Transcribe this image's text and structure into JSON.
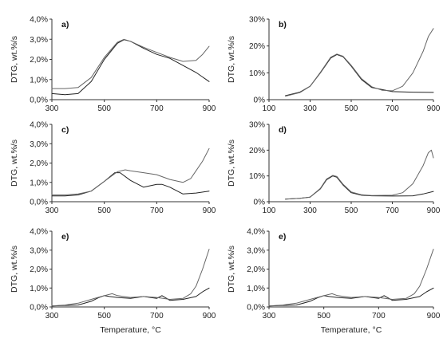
{
  "chart_data": [
    {
      "type": "line",
      "panel_label": "a)",
      "ylabel": "DTG, wt.%/s",
      "xlabel": "",
      "xlim": [
        300,
        900
      ],
      "ylim": [
        0,
        4
      ],
      "x_ticks": [
        "300",
        "500",
        "700",
        "900"
      ],
      "y_ticks": [
        "0,0%",
        "1,0%",
        "2,0%",
        "3,0%",
        "4,0%"
      ],
      "series": [
        {
          "color": "#222222",
          "x": [
            300,
            350,
            400,
            450,
            500,
            550,
            575,
            600,
            650,
            700,
            750,
            800,
            850,
            900
          ],
          "y": [
            0.3,
            0.25,
            0.3,
            0.9,
            2.0,
            2.8,
            2.98,
            2.9,
            2.55,
            2.25,
            2.05,
            1.7,
            1.35,
            0.9
          ]
        },
        {
          "color": "#666666",
          "x": [
            300,
            350,
            400,
            450,
            500,
            550,
            575,
            600,
            650,
            700,
            750,
            800,
            850,
            875,
            900
          ],
          "y": [
            0.55,
            0.55,
            0.6,
            1.1,
            2.1,
            2.85,
            3.0,
            2.9,
            2.6,
            2.35,
            2.1,
            1.9,
            1.95,
            2.25,
            2.65
          ]
        }
      ]
    },
    {
      "type": "line",
      "panel_label": "b)",
      "ylabel": "DTG, wt.%/s",
      "xlabel": "",
      "xlim": [
        100,
        900
      ],
      "ylim": [
        0,
        30
      ],
      "x_ticks": [
        "100",
        "300",
        "500",
        "700",
        "900"
      ],
      "y_ticks": [
        "0%",
        "10%",
        "20%",
        "30%"
      ],
      "series": [
        {
          "color": "#222222",
          "x": [
            180,
            250,
            300,
            350,
            400,
            430,
            460,
            500,
            550,
            600,
            700,
            800,
            900
          ],
          "y": [
            1.5,
            2.8,
            5.0,
            10.0,
            15.5,
            16.8,
            16.0,
            12.5,
            7.5,
            4.5,
            3.0,
            2.8,
            2.7
          ]
        },
        {
          "color": "#666666",
          "x": [
            180,
            250,
            300,
            350,
            400,
            430,
            460,
            500,
            550,
            600,
            650,
            700,
            750,
            800,
            850,
            875,
            900
          ],
          "y": [
            1.3,
            2.6,
            5.0,
            10.2,
            15.8,
            17.0,
            16.2,
            12.8,
            7.8,
            4.8,
            3.5,
            3.3,
            5.0,
            10.0,
            18.0,
            23.5,
            26.5
          ]
        }
      ]
    },
    {
      "type": "line",
      "panel_label": "c)",
      "ylabel": "DTG, wt.%/s",
      "xlabel": "",
      "xlim": [
        300,
        900
      ],
      "ylim": [
        0,
        4
      ],
      "x_ticks": [
        "300",
        "500",
        "700",
        "900"
      ],
      "y_ticks": [
        "0,0%",
        "1,0%",
        "2,0%",
        "3,0%",
        "4,0%"
      ],
      "series": [
        {
          "color": "#222222",
          "x": [
            300,
            350,
            400,
            450,
            500,
            540,
            560,
            600,
            650,
            700,
            720,
            750,
            800,
            850,
            900
          ],
          "y": [
            0.3,
            0.3,
            0.35,
            0.55,
            1.05,
            1.5,
            1.5,
            1.1,
            0.75,
            0.9,
            0.9,
            0.75,
            0.4,
            0.45,
            0.55
          ]
        },
        {
          "color": "#666666",
          "x": [
            300,
            350,
            400,
            450,
            500,
            550,
            580,
            600,
            650,
            700,
            750,
            800,
            830,
            850,
            875,
            900
          ],
          "y": [
            0.35,
            0.35,
            0.4,
            0.55,
            1.05,
            1.55,
            1.65,
            1.6,
            1.5,
            1.4,
            1.15,
            1.0,
            1.2,
            1.6,
            2.1,
            2.75
          ]
        }
      ]
    },
    {
      "type": "line",
      "panel_label": "d)",
      "ylabel": "DTG, wt.%/s",
      "xlabel": "",
      "xlim": [
        100,
        900
      ],
      "ylim": [
        0,
        30
      ],
      "x_ticks": [
        "100",
        "300",
        "500",
        "700",
        "900"
      ],
      "y_ticks": [
        "0%",
        "10%",
        "20%",
        "30%"
      ],
      "series": [
        {
          "color": "#222222",
          "x": [
            180,
            250,
            300,
            350,
            380,
            410,
            430,
            460,
            500,
            550,
            600,
            700,
            800,
            850,
            900
          ],
          "y": [
            1.0,
            1.3,
            1.8,
            5.0,
            8.5,
            10.0,
            9.5,
            6.5,
            3.5,
            2.5,
            2.3,
            2.2,
            2.3,
            3.0,
            4.0
          ]
        },
        {
          "color": "#666666",
          "x": [
            180,
            250,
            300,
            350,
            380,
            410,
            430,
            460,
            500,
            550,
            600,
            700,
            750,
            800,
            850,
            875,
            890,
            900
          ],
          "y": [
            1.0,
            1.3,
            1.8,
            5.2,
            8.8,
            10.2,
            9.8,
            6.8,
            3.8,
            2.7,
            2.4,
            2.5,
            3.5,
            7.0,
            14.0,
            19.0,
            20.0,
            17.0
          ]
        }
      ]
    },
    {
      "type": "line",
      "panel_label": "e)",
      "ylabel": "DTG, wt.%/s",
      "xlabel": "Temperature, °C",
      "xlim": [
        300,
        900
      ],
      "ylim": [
        0,
        4
      ],
      "x_ticks": [
        "300",
        "500",
        "700",
        "900"
      ],
      "y_ticks": [
        "0,0%",
        "1,0%",
        "2,0%",
        "3,0%",
        "4,0%"
      ],
      "series": [
        {
          "color": "#222222",
          "x": [
            300,
            350,
            400,
            450,
            480,
            500,
            520,
            550,
            600,
            650,
            700,
            720,
            750,
            800,
            850,
            875,
            900
          ],
          "y": [
            0.05,
            0.08,
            0.1,
            0.3,
            0.5,
            0.6,
            0.55,
            0.5,
            0.45,
            0.55,
            0.45,
            0.6,
            0.35,
            0.4,
            0.55,
            0.8,
            1.0
          ]
        },
        {
          "color": "#666666",
          "x": [
            300,
            350,
            400,
            450,
            500,
            530,
            550,
            600,
            650,
            700,
            750,
            800,
            830,
            850,
            875,
            900
          ],
          "y": [
            0.05,
            0.1,
            0.2,
            0.4,
            0.6,
            0.7,
            0.6,
            0.5,
            0.55,
            0.5,
            0.4,
            0.45,
            0.7,
            1.1,
            2.0,
            3.05
          ]
        }
      ]
    },
    {
      "type": "line",
      "panel_label": "e)",
      "ylabel": "DTG, wt.%/s",
      "xlabel": "Temperature, °C",
      "xlim": [
        300,
        900
      ],
      "ylim": [
        0,
        4
      ],
      "x_ticks": [
        "300",
        "500",
        "700",
        "900"
      ],
      "y_ticks": [
        "0,0%",
        "1,0%",
        "2,0%",
        "3,0%",
        "4,0%"
      ],
      "series": [
        {
          "color": "#222222",
          "x": [
            300,
            350,
            400,
            450,
            480,
            500,
            520,
            550,
            600,
            650,
            700,
            720,
            750,
            800,
            850,
            875,
            900
          ],
          "y": [
            0.05,
            0.08,
            0.1,
            0.3,
            0.5,
            0.6,
            0.55,
            0.5,
            0.45,
            0.55,
            0.45,
            0.6,
            0.35,
            0.4,
            0.55,
            0.8,
            1.0
          ]
        },
        {
          "color": "#666666",
          "x": [
            300,
            350,
            400,
            450,
            500,
            530,
            550,
            600,
            650,
            700,
            750,
            800,
            830,
            850,
            875,
            900
          ],
          "y": [
            0.05,
            0.1,
            0.2,
            0.4,
            0.6,
            0.7,
            0.6,
            0.5,
            0.55,
            0.5,
            0.4,
            0.45,
            0.7,
            1.1,
            2.0,
            3.05
          ]
        }
      ]
    }
  ]
}
